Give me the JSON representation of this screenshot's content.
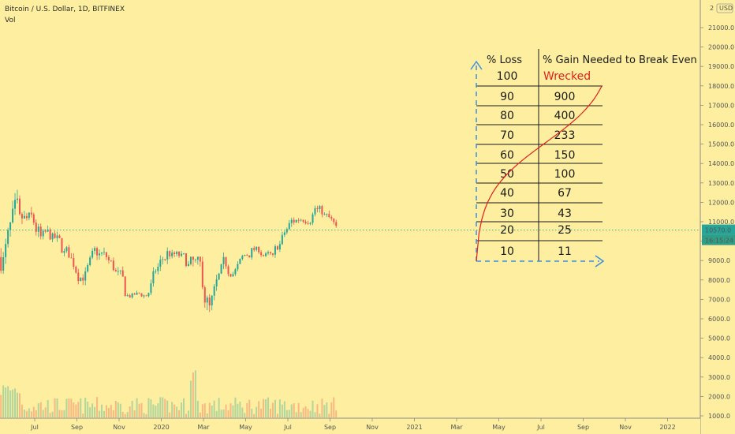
{
  "legend": {
    "symbol_line": "Bitcoin / U.S. Dollar, 1D, BITFINEX",
    "indicator": "Vol"
  },
  "price_axis": {
    "currency_badge": "USD",
    "top_label": "2",
    "current_price_label": "10570.0",
    "countdown_label": "16:15:24",
    "ticks": [
      "21000.0",
      "20000.0",
      "19000.0",
      "18000.0",
      "17000.0",
      "16000.0",
      "15000.0",
      "14000.0",
      "13000.0",
      "12000.0",
      "11000.0",
      "10000.0",
      "9000.0",
      "8000.0",
      "7000.0",
      "6000.0",
      "5000.0",
      "4000.0",
      "3000.0",
      "2000.0",
      "1000.0"
    ]
  },
  "time_axis": {
    "ticks": [
      "Jul",
      "Sep",
      "Nov",
      "2020",
      "Mar",
      "May",
      "Jul",
      "Sep",
      "Nov",
      "2021",
      "Mar",
      "May",
      "Jul",
      "Sep",
      "Nov",
      "2022"
    ]
  },
  "table": {
    "header_loss": "% Loss",
    "header_gain": "% Gain Needed to Break Even",
    "rows": [
      {
        "loss": "100",
        "gain": "Wrecked"
      },
      {
        "loss": "90",
        "gain": "900"
      },
      {
        "loss": "80",
        "gain": "400"
      },
      {
        "loss": "70",
        "gain": "233"
      },
      {
        "loss": "60",
        "gain": "150"
      },
      {
        "loss": "50",
        "gain": "100"
      },
      {
        "loss": "40",
        "gain": "67"
      },
      {
        "loss": "30",
        "gain": "43"
      },
      {
        "loss": "20",
        "gain": "25"
      },
      {
        "loss": "10",
        "gain": "11"
      }
    ]
  },
  "colors": {
    "background": "#fdef9f",
    "candle_up": "#26a69a",
    "candle_down": "#ef5350",
    "curve": "#e21e1e",
    "arrow": "#3d8ee0",
    "price_marker": "#26a69a",
    "countdown_bg": "#2f9e86"
  },
  "chart_data": {
    "type": "candlestick",
    "title": "",
    "xlabel": "",
    "ylabel": "",
    "x": [
      "2019-06",
      "2019-07",
      "2019-08",
      "2019-09",
      "2019-10",
      "2019-11",
      "2019-12",
      "2020-01",
      "2020-02",
      "2020-03",
      "2020-04",
      "2020-05",
      "2020-06",
      "2020-07",
      "2020-08",
      "2020-09"
    ],
    "close": [
      10800,
      10100,
      9600,
      8300,
      9200,
      7500,
      7200,
      9300,
      8700,
      6400,
      8600,
      9450,
      9150,
      11100,
      11700,
      10570
    ],
    "high": [
      13800,
      13000,
      12300,
      10900,
      10400,
      9300,
      7700,
      10100,
      10500,
      9200,
      9500,
      10100,
      10400,
      11500,
      12500,
      12100
    ],
    "low": [
      7500,
      9000,
      9400,
      7700,
      7300,
      6500,
      6400,
      6900,
      8300,
      3800,
      6100,
      8200,
      8900,
      8900,
      10500,
      9850
    ],
    "current_price": 10570,
    "ylim": [
      1000,
      22000
    ],
    "volume_note": "",
    "secondary": {
      "type": "line",
      "name": "",
      "x": [
        10,
        20,
        30,
        40,
        50,
        60,
        70,
        80,
        90
      ],
      "y": [
        11,
        25,
        43,
        67,
        100,
        150,
        233,
        400,
        900
      ]
    }
  }
}
